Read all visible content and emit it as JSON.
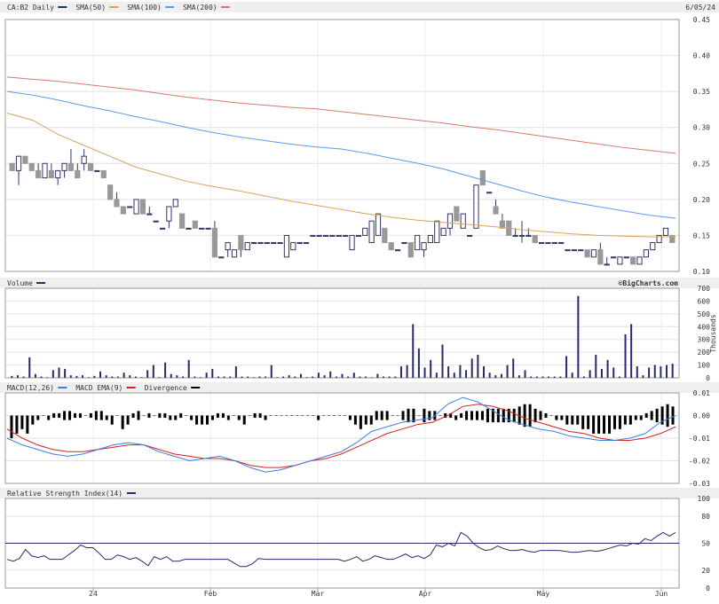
{
  "date_label": "6/05/24",
  "watermark": "©BigCharts.com",
  "colors": {
    "price": "#223377",
    "sma50": "#d9a35a",
    "sma100": "#5b9bee",
    "sma200": "#d47b6e",
    "volume": "#2a2a6a",
    "macd": "#3a7fe0",
    "signal": "#d62020",
    "divergence": "#000000",
    "rsi": "#2a2a6a",
    "candle_down": "#999999"
  },
  "x_axis": {
    "ticks": [
      "24",
      "Feb",
      "Mar",
      "Apr",
      "May",
      "Jun"
    ]
  },
  "chart_data": [
    {
      "type": "candlestick",
      "id": "price",
      "legend": [
        {
          "label": "CA:B2 Daily"
        },
        {
          "label": "SMA(50)"
        },
        {
          "label": "SMA(100)"
        },
        {
          "label": "SMA(200)"
        }
      ],
      "ylim": [
        0.1,
        0.45
      ],
      "y_ticks": [
        "0.45",
        "0.40",
        "0.35",
        "0.30",
        "0.25",
        "0.20",
        "0.15",
        "0.10"
      ],
      "ohlc": [
        [
          0.25,
          0.25,
          0.24,
          0.24
        ],
        [
          0.24,
          0.26,
          0.22,
          0.26
        ],
        [
          0.26,
          0.26,
          0.25,
          0.25
        ],
        [
          0.25,
          0.25,
          0.24,
          0.24
        ],
        [
          0.24,
          0.25,
          0.23,
          0.23
        ],
        [
          0.23,
          0.25,
          0.23,
          0.25
        ],
        [
          0.24,
          0.25,
          0.23,
          0.23
        ],
        [
          0.23,
          0.24,
          0.22,
          0.24
        ],
        [
          0.24,
          0.25,
          0.23,
          0.25
        ],
        [
          0.25,
          0.27,
          0.24,
          0.24
        ],
        [
          0.24,
          0.25,
          0.23,
          0.23
        ],
        [
          0.25,
          0.27,
          0.24,
          0.26
        ],
        [
          0.25,
          0.25,
          0.24,
          0.24
        ],
        [
          0.24,
          0.24,
          0.24,
          0.24
        ],
        [
          0.24,
          0.24,
          0.23,
          0.23
        ],
        [
          0.22,
          0.22,
          0.2,
          0.2
        ],
        [
          0.2,
          0.21,
          0.19,
          0.19
        ],
        [
          0.19,
          0.19,
          0.18,
          0.18
        ],
        [
          0.19,
          0.19,
          0.19,
          0.19
        ],
        [
          0.18,
          0.2,
          0.18,
          0.2
        ],
        [
          0.2,
          0.2,
          0.18,
          0.18
        ],
        [
          0.18,
          0.19,
          0.18,
          0.18
        ],
        [
          0.17,
          0.17,
          0.17,
          0.17
        ],
        [
          0.16,
          0.16,
          0.16,
          0.16
        ],
        [
          0.17,
          0.19,
          0.16,
          0.19
        ],
        [
          0.19,
          0.2,
          0.19,
          0.2
        ],
        [
          0.18,
          0.18,
          0.16,
          0.16
        ],
        [
          0.16,
          0.16,
          0.16,
          0.16
        ],
        [
          0.17,
          0.17,
          0.16,
          0.16
        ],
        [
          0.16,
          0.16,
          0.16,
          0.16
        ],
        [
          0.16,
          0.16,
          0.16,
          0.16
        ],
        [
          0.16,
          0.17,
          0.12,
          0.12
        ],
        [
          0.12,
          0.12,
          0.12,
          0.12
        ],
        [
          0.13,
          0.14,
          0.12,
          0.14
        ],
        [
          0.12,
          0.13,
          0.12,
          0.13
        ],
        [
          0.15,
          0.15,
          0.12,
          0.13
        ],
        [
          0.13,
          0.14,
          0.13,
          0.14
        ],
        [
          0.14,
          0.14,
          0.14,
          0.14
        ],
        [
          0.14,
          0.14,
          0.14,
          0.14
        ],
        [
          0.14,
          0.14,
          0.14,
          0.14
        ],
        [
          0.14,
          0.14,
          0.14,
          0.14
        ],
        [
          0.14,
          0.14,
          0.14,
          0.14
        ],
        [
          0.12,
          0.15,
          0.12,
          0.15
        ],
        [
          0.13,
          0.14,
          0.13,
          0.14
        ],
        [
          0.14,
          0.14,
          0.14,
          0.14
        ],
        [
          0.14,
          0.14,
          0.14,
          0.14
        ],
        [
          0.15,
          0.15,
          0.15,
          0.15
        ],
        [
          0.15,
          0.15,
          0.15,
          0.15
        ],
        [
          0.15,
          0.15,
          0.15,
          0.15
        ],
        [
          0.15,
          0.15,
          0.15,
          0.15
        ],
        [
          0.15,
          0.15,
          0.15,
          0.15
        ],
        [
          0.15,
          0.15,
          0.15,
          0.15
        ],
        [
          0.13,
          0.15,
          0.13,
          0.15
        ],
        [
          0.15,
          0.15,
          0.15,
          0.15
        ],
        [
          0.15,
          0.16,
          0.15,
          0.16
        ],
        [
          0.14,
          0.17,
          0.14,
          0.17
        ],
        [
          0.15,
          0.18,
          0.15,
          0.18
        ],
        [
          0.16,
          0.16,
          0.14,
          0.14
        ],
        [
          0.14,
          0.14,
          0.13,
          0.13
        ],
        [
          0.13,
          0.13,
          0.13,
          0.13
        ],
        [
          0.14,
          0.14,
          0.14,
          0.14
        ],
        [
          0.14,
          0.14,
          0.12,
          0.12
        ],
        [
          0.13,
          0.15,
          0.13,
          0.15
        ],
        [
          0.13,
          0.14,
          0.12,
          0.14
        ],
        [
          0.14,
          0.15,
          0.14,
          0.15
        ],
        [
          0.14,
          0.17,
          0.14,
          0.17
        ],
        [
          0.15,
          0.16,
          0.15,
          0.16
        ],
        [
          0.16,
          0.18,
          0.15,
          0.18
        ],
        [
          0.19,
          0.19,
          0.17,
          0.17
        ],
        [
          0.16,
          0.18,
          0.16,
          0.18
        ],
        [
          0.15,
          0.15,
          0.15,
          0.15
        ],
        [
          0.16,
          0.22,
          0.16,
          0.22
        ],
        [
          0.24,
          0.24,
          0.22,
          0.22
        ],
        [
          0.21,
          0.21,
          0.21,
          0.21
        ],
        [
          0.19,
          0.2,
          0.18,
          0.18
        ],
        [
          0.17,
          0.18,
          0.16,
          0.16
        ],
        [
          0.17,
          0.17,
          0.15,
          0.15
        ],
        [
          0.15,
          0.16,
          0.15,
          0.15
        ],
        [
          0.15,
          0.17,
          0.14,
          0.15
        ],
        [
          0.15,
          0.16,
          0.15,
          0.15
        ],
        [
          0.15,
          0.15,
          0.14,
          0.14
        ],
        [
          0.14,
          0.14,
          0.14,
          0.14
        ],
        [
          0.14,
          0.14,
          0.14,
          0.14
        ],
        [
          0.14,
          0.14,
          0.14,
          0.14
        ],
        [
          0.14,
          0.14,
          0.14,
          0.14
        ],
        [
          0.13,
          0.13,
          0.13,
          0.13
        ],
        [
          0.13,
          0.13,
          0.13,
          0.13
        ],
        [
          0.13,
          0.13,
          0.13,
          0.13
        ],
        [
          0.13,
          0.13,
          0.12,
          0.12
        ],
        [
          0.12,
          0.13,
          0.12,
          0.13
        ],
        [
          0.13,
          0.14,
          0.11,
          0.11
        ],
        [
          0.11,
          0.12,
          0.11,
          0.11
        ],
        [
          0.12,
          0.12,
          0.12,
          0.12
        ],
        [
          0.11,
          0.12,
          0.11,
          0.12
        ],
        [
          0.12,
          0.12,
          0.12,
          0.12
        ],
        [
          0.12,
          0.12,
          0.11,
          0.11
        ],
        [
          0.11,
          0.12,
          0.11,
          0.12
        ],
        [
          0.12,
          0.13,
          0.12,
          0.13
        ],
        [
          0.13,
          0.14,
          0.13,
          0.14
        ],
        [
          0.14,
          0.15,
          0.14,
          0.15
        ],
        [
          0.15,
          0.16,
          0.15,
          0.16
        ],
        [
          0.15,
          0.15,
          0.14,
          0.14
        ]
      ],
      "sma50": [
        0.32,
        0.31,
        0.29,
        0.275,
        0.26,
        0.245,
        0.235,
        0.225,
        0.218,
        0.212,
        0.205,
        0.198,
        0.192,
        0.186,
        0.18,
        0.175,
        0.171,
        0.168,
        0.165,
        0.162,
        0.158,
        0.155,
        0.152,
        0.15,
        0.149,
        0.148,
        0.148
      ],
      "sma100": [
        0.35,
        0.345,
        0.338,
        0.33,
        0.323,
        0.315,
        0.308,
        0.3,
        0.293,
        0.287,
        0.282,
        0.277,
        0.273,
        0.27,
        0.264,
        0.257,
        0.25,
        0.242,
        0.232,
        0.222,
        0.212,
        0.203,
        0.196,
        0.19,
        0.184,
        0.178,
        0.174
      ],
      "sma200": [
        0.37,
        0.367,
        0.364,
        0.36,
        0.356,
        0.352,
        0.347,
        0.342,
        0.338,
        0.334,
        0.331,
        0.328,
        0.326,
        0.322,
        0.318,
        0.314,
        0.31,
        0.306,
        0.301,
        0.297,
        0.292,
        0.287,
        0.282,
        0.277,
        0.272,
        0.268,
        0.264
      ]
    },
    {
      "type": "bar",
      "id": "volume",
      "legend": [
        {
          "label": "Volume"
        }
      ],
      "ylim": [
        0,
        700
      ],
      "y_ticks": [
        "700",
        "600",
        "500",
        "400",
        "300",
        "200",
        "100",
        "0"
      ],
      "ylabel": "Thousands",
      "values": [
        15,
        20,
        10,
        160,
        30,
        10,
        5,
        60,
        80,
        70,
        20,
        15,
        20,
        5,
        15,
        50,
        20,
        10,
        10,
        40,
        20,
        10,
        5,
        60,
        100,
        5,
        120,
        30,
        20,
        10,
        140,
        10,
        5,
        40,
        70,
        10,
        10,
        10,
        90,
        10,
        10,
        5,
        10,
        10,
        100,
        5,
        10,
        20,
        10,
        30,
        5,
        10,
        40,
        20,
        50,
        10,
        30,
        10,
        40,
        10,
        10,
        5,
        30,
        10,
        10,
        10,
        90,
        100,
        420,
        230,
        80,
        140,
        40,
        260,
        90,
        40,
        100,
        60,
        150,
        180,
        90,
        40,
        20,
        30,
        100,
        150,
        20,
        60,
        10,
        10,
        10,
        10,
        10,
        10,
        170,
        40,
        640,
        10,
        60,
        180,
        70,
        140,
        80,
        10,
        340,
        420,
        90,
        20,
        80,
        100,
        90,
        100,
        110
      ]
    },
    {
      "type": "bar+line",
      "id": "macd",
      "legend": [
        {
          "label": "MACD(12,26)"
        },
        {
          "label": "MACD EMA(9)"
        },
        {
          "label": "Divergence"
        }
      ],
      "ylim": [
        -0.03,
        0.01
      ],
      "y_ticks": [
        "0.01",
        "0.00",
        "-0.01",
        "-0.02",
        "-0.03"
      ],
      "macd": [
        -0.01,
        -0.013,
        -0.015,
        -0.017,
        -0.018,
        -0.017,
        -0.015,
        -0.013,
        -0.012,
        -0.013,
        -0.016,
        -0.018,
        -0.02,
        -0.019,
        -0.018,
        -0.02,
        -0.023,
        -0.025,
        -0.024,
        -0.022,
        -0.02,
        -0.018,
        -0.016,
        -0.012,
        -0.007,
        -0.005,
        -0.003,
        -0.002,
        -0.001,
        0.005,
        0.008,
        0.006,
        0.002,
        -0.002,
        -0.004,
        -0.006,
        -0.007,
        -0.009,
        -0.01,
        -0.011,
        -0.011,
        -0.01,
        -0.008,
        -0.003,
        0.0
      ],
      "signal": [
        -0.006,
        -0.01,
        -0.013,
        -0.015,
        -0.016,
        -0.016,
        -0.015,
        -0.014,
        -0.013,
        -0.013,
        -0.015,
        -0.017,
        -0.018,
        -0.019,
        -0.019,
        -0.02,
        -0.022,
        -0.023,
        -0.023,
        -0.022,
        -0.02,
        -0.019,
        -0.017,
        -0.014,
        -0.011,
        -0.008,
        -0.006,
        -0.004,
        -0.003,
        0.0,
        0.004,
        0.005,
        0.004,
        0.002,
        -0.001,
        -0.003,
        -0.005,
        -0.007,
        -0.008,
        -0.01,
        -0.011,
        -0.011,
        -0.01,
        -0.008,
        -0.005
      ],
      "divergence": [
        -0.005,
        -0.004,
        -0.003,
        -0.004,
        -0.002,
        -0.001,
        0.0,
        -0.001,
        0.001,
        0.001,
        0.002,
        0.002,
        0.001,
        0.001,
        0.0,
        0.001,
        0.002,
        0.002,
        -0.001,
        -0.002,
        0.0,
        -0.003,
        -0.002,
        0.001,
        0.002,
        0.0,
        0.001,
        0.0,
        0.001,
        0.001,
        -0.001,
        -0.001,
        0.001,
        0.0,
        -0.001,
        -0.002,
        -0.002,
        -0.002,
        -0.001,
        0.001,
        0.001,
        -0.001,
        0.0,
        -0.001,
        -0.002,
        0.0,
        0.001,
        0.001,
        -0.001,
        0.0,
        0.0,
        0.0,
        0.0,
        0.0,
        0.0,
        0.0,
        0.0,
        0.0,
        -0.001,
        0.0,
        0.0,
        0.0,
        0.0,
        0.0,
        -0.001,
        -0.002,
        -0.003,
        -0.002,
        -0.002,
        0.002,
        0.002,
        0.002,
        0.0,
        0.0,
        0.002,
        0.003,
        0.003,
        0.0,
        0.003,
        0.002,
        0.002,
        0.0,
        0.001,
        0.001,
        -0.001,
        0.001,
        0.002,
        0.002,
        0.002,
        0.002,
        0.003,
        0.003,
        0.003,
        0.003,
        0.003,
        0.003,
        0.004,
        0.005,
        0.005,
        0.003,
        0.002,
        0.001,
        0.0,
        -0.001,
        -0.001,
        -0.002,
        -0.002,
        -0.002,
        -0.003,
        -0.003,
        -0.004,
        -0.004,
        -0.004,
        -0.004,
        -0.003,
        -0.003,
        -0.002,
        -0.002,
        -0.001,
        -0.001,
        0.001,
        0.002,
        0.003,
        0.004,
        0.005,
        0.004
      ]
    },
    {
      "type": "line",
      "id": "rsi",
      "legend": [
        {
          "label": "Relative Strength Index(14)"
        }
      ],
      "ylim": [
        0,
        100
      ],
      "y_ticks": [
        "100",
        "80",
        "50",
        "20",
        "0"
      ],
      "reference": [
        50
      ],
      "values": [
        32,
        30,
        33,
        43,
        36,
        34,
        36,
        32,
        32,
        32,
        37,
        42,
        48,
        45,
        45,
        39,
        32,
        32,
        37,
        35,
        32,
        34,
        30,
        25,
        35,
        32,
        35,
        30,
        30,
        32,
        32,
        32,
        32,
        32,
        32,
        32,
        32,
        28,
        24,
        24,
        27,
        33,
        32,
        32,
        32,
        32,
        32,
        32,
        32,
        32,
        32,
        32,
        32,
        32,
        32,
        30,
        32,
        35,
        30,
        32,
        36,
        34,
        32,
        32,
        35,
        38,
        34,
        36,
        33,
        37,
        48,
        46,
        50,
        47,
        62,
        58,
        50,
        45,
        42,
        43,
        47,
        44,
        42,
        42,
        43,
        41,
        40,
        42,
        42,
        42,
        42,
        41,
        40,
        40,
        41,
        42,
        41,
        42,
        44,
        46,
        48,
        47,
        50,
        49,
        55,
        53,
        58,
        62,
        58,
        62
      ]
    }
  ]
}
